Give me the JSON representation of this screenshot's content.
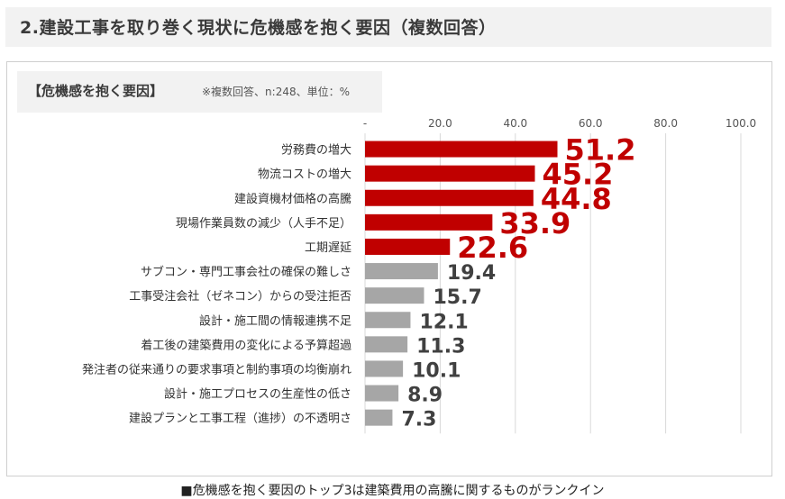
{
  "header": {
    "title": "2.建設工事を取り巻く現状に危機感を抱く要因（複数回答）"
  },
  "chart_header": {
    "title": "【危機感を抱く要因】",
    "note": "※複数回答、n:248、単位：%"
  },
  "footer": {
    "caption": "■危機感を抱く要因のトップ3は建築費用の高騰に関するものがランクイン"
  },
  "colors": {
    "highlight": "#c00000",
    "normal": "#a6a6a6",
    "grid": "#d9d9d9"
  },
  "chart_data": {
    "type": "bar",
    "orientation": "horizontal",
    "xlim": [
      0,
      100
    ],
    "tick_labels": [
      "-",
      "20.0",
      "40.0",
      "60.0",
      "80.0",
      "100.0"
    ],
    "ticks": [
      0,
      20,
      40,
      60,
      80,
      100
    ],
    "grid": true,
    "categories": [
      "労務費の増大",
      "物流コストの増大",
      "建設資機材価格の高騰",
      "現場作業員数の減少（人手不足）",
      "工期遅延",
      "サブコン・専門工事会社の確保の難しさ",
      "工事受注会社（ゼネコン）からの受注拒否",
      "設計・施工間の情報連携不足",
      "着工後の建築費用の変化による予算超過",
      "発注者の従来通りの要求事項と制約事項の均衡崩れ",
      "設計・施工プロセスの生産性の低さ",
      "建設プランと工事工程（進捗）の不透明さ"
    ],
    "values": [
      51.2,
      45.2,
      44.8,
      33.9,
      22.6,
      19.4,
      15.7,
      12.1,
      11.3,
      10.1,
      8.9,
      7.3
    ],
    "value_labels": [
      "51.2",
      "45.2",
      "44.8",
      "33.9",
      "22.6",
      "19.4",
      "15.7",
      "12.1",
      "11.3",
      "10.1",
      "8.9",
      "7.3"
    ],
    "highlight_top": 5
  }
}
